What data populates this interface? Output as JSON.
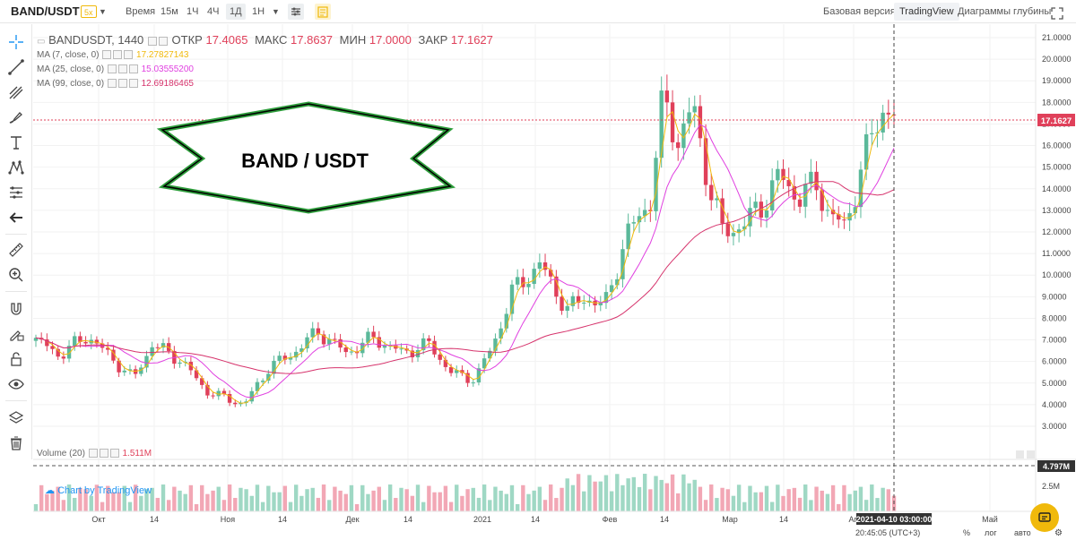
{
  "header": {
    "symbol": "BAND/USDT",
    "leverage": "5x",
    "time_label": "Время",
    "timeframes": [
      "15м",
      "1Ч",
      "4Ч",
      "1Д",
      "1Н"
    ],
    "active_timeframe": "1Д",
    "view_basic": "Базовая версия",
    "view_tradingview": "TradingView",
    "view_depth": "Диаграммы глубины"
  },
  "legend": {
    "title": "BANDUSDT, 1440",
    "open_label": "ОТКР",
    "open": "17.4065",
    "high_label": "МАКС",
    "high": "17.8637",
    "low_label": "МИН",
    "low": "17.0000",
    "close_label": "ЗАКР",
    "close": "17.1627",
    "ma7_label": "MA (7, close, 0)",
    "ma7_value": "17.27827143",
    "ma25_label": "MA (25, close, 0)",
    "ma25_value": "15.03555200",
    "ma99_label": "MA (99, close, 0)",
    "ma99_value": "12.69186465",
    "volume_label": "Volume (20)",
    "volume_value": "1.511M"
  },
  "annotation": {
    "text": "BAND / USDT"
  },
  "colors": {
    "up": "#5bb99a",
    "down": "#e0405a",
    "ma7": "#f0b90b",
    "ma25": "#e040e0",
    "ma99": "#d6336c",
    "vol_up": "#9fd8c4",
    "vol_down": "#f2a7b5"
  },
  "price_axis": {
    "ticks": [
      "21.0000",
      "20.0000",
      "19.0000",
      "18.0000",
      "17.0000",
      "16.0000",
      "15.0000",
      "14.0000",
      "13.0000",
      "12.0000",
      "11.0000",
      "10.0000",
      "9.0000",
      "8.0000",
      "7.0000",
      "6.0000",
      "5.0000",
      "4.0000",
      "3.0000"
    ],
    "current_price": "17.1627"
  },
  "volume_axis": {
    "current_label": "4.797M",
    "tick": "2.5M"
  },
  "time_axis": {
    "labels": [
      "Окт",
      "14",
      "Ноя",
      "14",
      "Дек",
      "14",
      "2021",
      "14",
      "Фев",
      "14",
      "Мар",
      "14",
      "Ап",
      "Май"
    ],
    "cursor_label": "2021-04-10 03:00:00"
  },
  "watermark": "Chart by TradingView",
  "footer": {
    "time": "20:45:05 (UTC+3)",
    "percent": "%",
    "log": "лог",
    "auto": "авто"
  }
}
